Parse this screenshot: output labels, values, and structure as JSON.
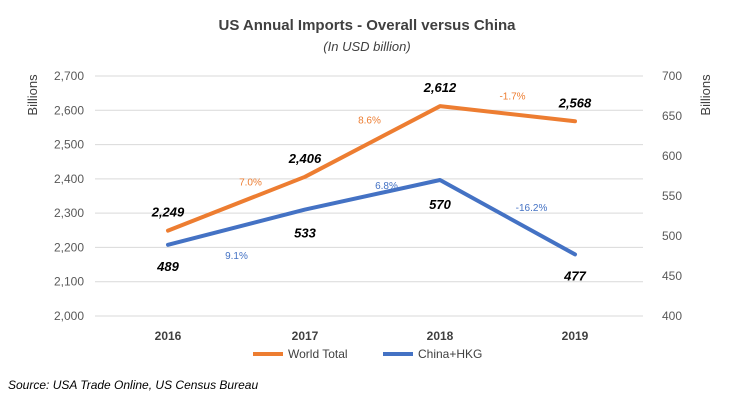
{
  "chart_data": {
    "type": "line",
    "title": "US Annual Imports - Overall versus China",
    "subtitle": "(In USD billion)",
    "categories": [
      "2016",
      "2017",
      "2018",
      "2019"
    ],
    "y_left": {
      "label": "Billions",
      "range": [
        2000,
        2700
      ],
      "ticks": [
        "2,000",
        "2,100",
        "2,200",
        "2,300",
        "2,400",
        "2,500",
        "2,600",
        "2,700"
      ]
    },
    "y_right": {
      "label": "Billions",
      "range": [
        400,
        700
      ],
      "ticks": [
        "400",
        "450",
        "500",
        "550",
        "600",
        "650",
        "700"
      ]
    },
    "grid": "horizontal",
    "legend_position": "bottom",
    "series": [
      {
        "name": "World Total",
        "axis": "left",
        "color": "#ED7D31",
        "values": [
          2249,
          2406,
          2612,
          2568
        ],
        "value_labels": [
          "2,249",
          "2,406",
          "2,612",
          "2,568"
        ],
        "pct_changes": [
          "7.0%",
          "8.6%",
          "-1.7%"
        ]
      },
      {
        "name": "China+HKG",
        "axis": "right",
        "color": "#4472C4",
        "values": [
          489,
          533,
          570,
          477
        ],
        "value_labels": [
          "489",
          "533",
          "570",
          "477"
        ],
        "pct_changes": [
          "9.1%",
          "6.8%",
          "-16.2%"
        ]
      }
    ]
  },
  "source": "Source: USA Trade Online, US Census Bureau"
}
